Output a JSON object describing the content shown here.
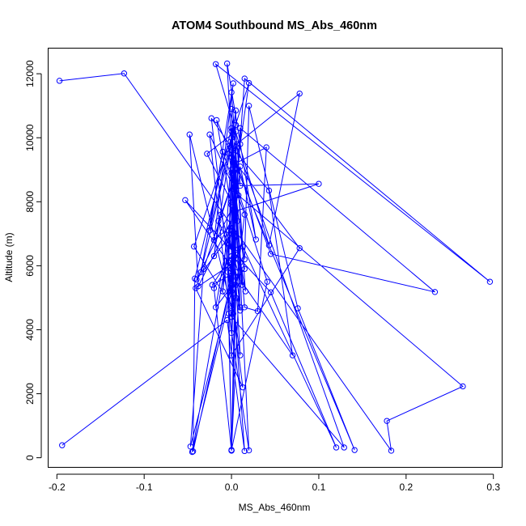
{
  "chart_data": {
    "type": "line",
    "title": "ATOM4 Southbound MS_Abs_460nm",
    "xlabel": "MS_Abs_460nm",
    "ylabel": "Altitude (m)",
    "xlim": [
      -0.21,
      0.31
    ],
    "ylim": [
      -300,
      12800
    ],
    "xticks": [
      -0.2,
      -0.1,
      0.0,
      0.1,
      0.2,
      0.3
    ],
    "xtick_labels": [
      "-0.2",
      "-0.1",
      "0.0",
      "0.1",
      "0.2",
      "0.3"
    ],
    "yticks": [
      0,
      2000,
      4000,
      6000,
      8000,
      10000,
      12000
    ],
    "ytick_labels": [
      "0",
      "2000",
      "4000",
      "6000",
      "8000",
      "10000",
      "12000"
    ],
    "grid": false,
    "legend": "none",
    "series_color": "#0000ff",
    "marker": "open-circle",
    "series": [
      {
        "x": [
          -0.197,
          -0.123,
          0.183,
          0.178,
          0.265,
          0.008,
          -0.04,
          0.0,
          0.004,
          0.1,
          0.01,
          0.005,
          -0.028,
          0.0,
          0.006,
          0.078,
          0.043,
          -0.018,
          0.296,
          0.015,
          -0.002,
          0.005,
          0.04,
          0.03,
          0.015,
          0.0,
          -0.005,
          0.028,
          0.01,
          0.0,
          0.01,
          0.233,
          0.045,
          0.0,
          -0.01,
          0.005,
          0.005,
          0.0,
          -0.048,
          -0.038,
          0.005,
          0.0,
          0.02,
          0.01,
          0.005,
          0.0,
          0.078,
          -0.003,
          0.015,
          0.02,
          0.076,
          0.141,
          -0.017,
          0.016,
          0.0,
          0.013,
          0.12,
          0.045,
          -0.053,
          0.07,
          0.043,
          0.0,
          -0.023,
          0.002,
          0.015,
          -0.01,
          -0.035,
          0.005,
          -0.043,
          0.0,
          0.003,
          -0.015,
          -0.02,
          0.005,
          0.0,
          -0.047,
          -0.032,
          0.006,
          -0.012,
          0.012,
          0.0,
          -0.004,
          0.013,
          -0.041,
          0.008,
          0.0,
          -0.025,
          0.002,
          -0.02,
          0.007,
          0.0,
          0.129,
          -0.003,
          0.02,
          0.005,
          0.0,
          -0.044,
          -0.042,
          0.0,
          0.01,
          -0.003,
          0.0,
          0.015,
          -0.018,
          -0.003,
          0.005,
          0.0,
          0.01,
          0.005,
          -0.022,
          0.0,
          0.005,
          0.0,
          -0.025,
          0.003,
          0.0,
          -0.045,
          0.0,
          0.005,
          0.0,
          0.005,
          0.0,
          0.01,
          0.0,
          0.0,
          0.041,
          0.0,
          -0.005,
          0.0,
          0.01,
          -0.004,
          0.0,
          0.005,
          -0.02,
          0.0,
          0.005,
          0.0,
          0.015,
          -0.005,
          -0.194
        ],
        "y": [
          11780,
          12010,
          220,
          1150,
          2230,
          8200,
          5570,
          7000,
          7700,
          8560,
          8500,
          10200,
          9500,
          8000,
          9800,
          11380,
          6640,
          12300,
          5500,
          11850,
          5200,
          9200,
          9700,
          4580,
          4700,
          9700,
          12320,
          6820,
          9100,
          6300,
          10300,
          5180,
          6370,
          9600,
          5200,
          8600,
          9000,
          4680,
          10100,
          5360,
          7700,
          10000,
          11710,
          9800,
          8400,
          3200,
          6550,
          9500,
          6200,
          11000,
          4670,
          240,
          10550,
          5200,
          11420,
          6600,
          320,
          5170,
          8050,
          3200,
          8350,
          9700,
          10610,
          4500,
          7600,
          9560,
          5800,
          10400,
          6600,
          4740,
          6300,
          7400,
          6300,
          10850,
          5370,
          350,
          5900,
          9000,
          7600,
          5400,
          9400,
          5800,
          2200,
          5300,
          6200,
          10000,
          7100,
          11700,
          6800,
          7400,
          10200,
          320,
          4500,
          230,
          8400,
          5600,
          200,
          5600,
          10300,
          4600,
          6100,
          9400,
          5900,
          4700,
          7100,
          5400,
          10900,
          4700,
          5800,
          5400,
          6300,
          9600,
          3900,
          10100,
          8400,
          5200,
          180,
          7100,
          6500,
          8900,
          5000,
          220,
          6100,
          4400,
          9000,
          5500,
          240,
          6700,
          7900,
          3200,
          6000,
          240,
          6400,
          5300,
          230,
          6900,
          5900,
          210,
          4300,
          390
        ]
      }
    ]
  }
}
